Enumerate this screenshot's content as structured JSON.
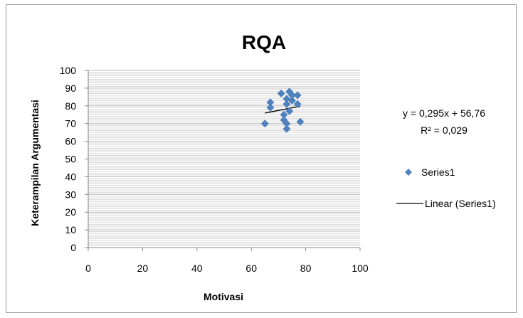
{
  "chart_data": {
    "type": "scatter",
    "title": "RQA",
    "xlabel": "Motivasi",
    "ylabel": "Keterampilan Argumentasi",
    "xlim": [
      0,
      100
    ],
    "ylim": [
      0,
      100
    ],
    "xticks": [
      "0",
      "20",
      "40",
      "60",
      "80",
      "100"
    ],
    "yticks": [
      "0",
      "10",
      "20",
      "30",
      "40",
      "50",
      "60",
      "70",
      "80",
      "90",
      "100"
    ],
    "grid": true,
    "legend_position": "right",
    "series": [
      {
        "name": "Series1",
        "color": "#4f81bd",
        "marker": "diamond",
        "points": [
          [
            65,
            70
          ],
          [
            67,
            82
          ],
          [
            67,
            79
          ],
          [
            71,
            87
          ],
          [
            72,
            75
          ],
          [
            72,
            72
          ],
          [
            73,
            70
          ],
          [
            73,
            67
          ],
          [
            73,
            84
          ],
          [
            73,
            81
          ],
          [
            74,
            88
          ],
          [
            74,
            77
          ],
          [
            75,
            86
          ],
          [
            75,
            83
          ],
          [
            77,
            86
          ],
          [
            77,
            81
          ],
          [
            78,
            71
          ]
        ]
      }
    ],
    "trendline": {
      "name": "Linear (Series1)",
      "color": "#000000",
      "slope": 0.295,
      "intercept": 56.76,
      "x_range": [
        65,
        78
      ],
      "equation": "y = 0,295x + 56,76",
      "r2": "R² = 0,029"
    }
  }
}
